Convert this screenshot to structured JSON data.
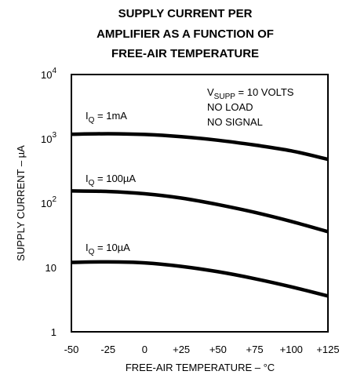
{
  "chart_data": {
    "type": "line",
    "title_lines": [
      "SUPPLY CURRENT PER",
      "AMPLIFIER AS A FUNCTION OF",
      "FREE-AIR TEMPERATURE"
    ],
    "xlabel": "FREE-AIR TEMPERATURE – °C",
    "ylabel": "SUPPLY CURRENT – µA",
    "xlim": [
      -50,
      125
    ],
    "ylim": [
      1,
      10000
    ],
    "y_scale": "log",
    "x_ticks": [
      "-50",
      "-25",
      "0",
      "+25",
      "+50",
      "+75",
      "+100",
      "+125"
    ],
    "y_ticks": [
      {
        "value": 10000,
        "base": "10",
        "exp": "4"
      },
      {
        "value": 1000,
        "base": "10",
        "exp": "3"
      },
      {
        "value": 100,
        "base": "10",
        "exp": "2"
      },
      {
        "value": 10,
        "base": "10",
        "exp": ""
      },
      {
        "value": 1,
        "base": "1",
        "exp": ""
      }
    ],
    "notes": [
      {
        "main": "V",
        "sub": "SUPP",
        "rest": " = 10 VOLTS"
      },
      {
        "main": "NO LOAD",
        "sub": "",
        "rest": ""
      },
      {
        "main": "NO SIGNAL",
        "sub": "",
        "rest": ""
      }
    ],
    "series": [
      {
        "label_main": "I",
        "label_sub": "Q",
        "label_rest": " = 1mA",
        "x": [
          -50,
          -25,
          0,
          25,
          50,
          75,
          100,
          125
        ],
        "y": [
          1180,
          1200,
          1170,
          1080,
          950,
          800,
          650,
          480
        ]
      },
      {
        "label_main": "I",
        "label_sub": "Q",
        "label_rest": " = 100µA",
        "x": [
          -50,
          -25,
          0,
          25,
          50,
          75,
          100,
          125
        ],
        "y": [
          155,
          152,
          140,
          120,
          95,
          72,
          52,
          36
        ]
      },
      {
        "label_main": "I",
        "label_sub": "Q",
        "label_rest": " = 10µA",
        "x": [
          -50,
          -25,
          0,
          25,
          50,
          75,
          100,
          125
        ],
        "y": [
          12,
          12.2,
          11.8,
          10.4,
          8.6,
          6.7,
          5.0,
          3.6
        ]
      }
    ]
  }
}
